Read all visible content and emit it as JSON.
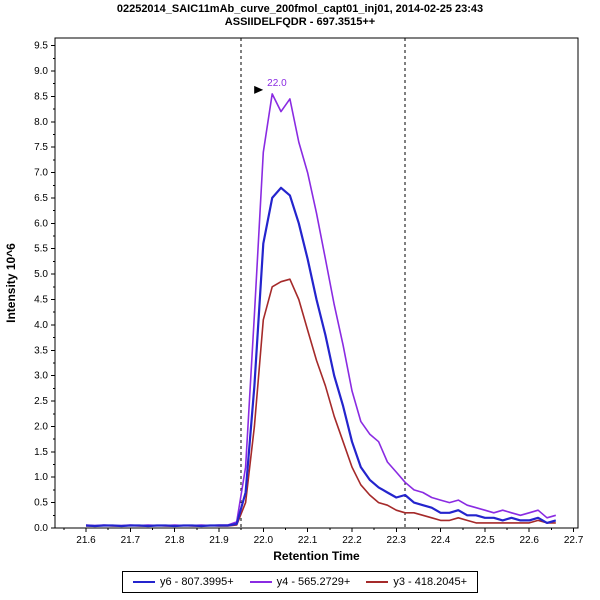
{
  "header": {
    "title_line1": "02252014_SAIC11mAb_curve_200fmol_capt01_inj01, 2014-02-25 23:43",
    "title_line2": "ASSIIDELFQDR - 697.3515++"
  },
  "chart_data": {
    "type": "line",
    "title": "ASSIIDELFQDR - 697.3515++",
    "xlabel": "Retention Time",
    "ylabel": "Intensity 10^6",
    "xlim": [
      21.53,
      22.71
    ],
    "ylim": [
      0,
      9.65
    ],
    "x_ticks": [
      21.6,
      21.7,
      21.8,
      21.9,
      22.0,
      22.1,
      22.2,
      22.3,
      22.4,
      22.5,
      22.6,
      22.7
    ],
    "y_ticks": [
      0.0,
      0.5,
      1.0,
      1.5,
      2.0,
      2.5,
      3.0,
      3.5,
      4.0,
      4.5,
      5.0,
      5.5,
      6.0,
      6.5,
      7.0,
      7.5,
      8.0,
      8.5,
      9.0,
      9.5
    ],
    "grid": false,
    "legend_position": "bottom",
    "peak_boundaries": [
      21.95,
      22.32
    ],
    "peak_annotation": {
      "text": "22.0",
      "x": 22.02,
      "y": 8.55,
      "color": "#8A2BE2"
    },
    "x": [
      21.6,
      21.62,
      21.64,
      21.66,
      21.68,
      21.7,
      21.72,
      21.74,
      21.76,
      21.78,
      21.8,
      21.82,
      21.84,
      21.86,
      21.88,
      21.9,
      21.92,
      21.94,
      21.96,
      21.98,
      22.0,
      22.02,
      22.04,
      22.06,
      22.08,
      22.1,
      22.12,
      22.14,
      22.16,
      22.18,
      22.2,
      22.22,
      22.24,
      22.26,
      22.28,
      22.3,
      22.32,
      22.34,
      22.36,
      22.38,
      22.4,
      22.42,
      22.44,
      22.46,
      22.48,
      22.5,
      22.52,
      22.54,
      22.56,
      22.58,
      22.6,
      22.62,
      22.64,
      22.66
    ],
    "series": [
      {
        "name": "y6 - 807.3995+",
        "color": "#2424cd",
        "values": [
          0.05,
          0.04,
          0.05,
          0.05,
          0.04,
          0.05,
          0.05,
          0.04,
          0.05,
          0.05,
          0.04,
          0.05,
          0.05,
          0.04,
          0.05,
          0.05,
          0.05,
          0.08,
          0.7,
          2.8,
          5.6,
          6.5,
          6.7,
          6.55,
          6.0,
          5.3,
          4.5,
          3.8,
          3.0,
          2.4,
          1.7,
          1.2,
          0.95,
          0.8,
          0.7,
          0.6,
          0.65,
          0.5,
          0.45,
          0.4,
          0.3,
          0.3,
          0.35,
          0.25,
          0.25,
          0.2,
          0.2,
          0.15,
          0.2,
          0.15,
          0.15,
          0.2,
          0.1,
          0.15
        ]
      },
      {
        "name": "y4 - 565.2729+",
        "color": "#8A2BE2",
        "values": [
          0.06,
          0.05,
          0.06,
          0.05,
          0.05,
          0.06,
          0.05,
          0.06,
          0.05,
          0.05,
          0.06,
          0.05,
          0.05,
          0.06,
          0.05,
          0.06,
          0.06,
          0.12,
          1.2,
          4.2,
          7.4,
          8.55,
          8.2,
          8.45,
          7.6,
          7.0,
          6.2,
          5.3,
          4.4,
          3.6,
          2.7,
          2.1,
          1.85,
          1.7,
          1.3,
          1.1,
          0.9,
          0.75,
          0.7,
          0.6,
          0.55,
          0.5,
          0.55,
          0.45,
          0.4,
          0.35,
          0.3,
          0.35,
          0.3,
          0.25,
          0.3,
          0.35,
          0.2,
          0.25
        ]
      },
      {
        "name": "y3 - 418.2045+",
        "color": "#A52A2A",
        "values": [
          0.04,
          0.04,
          0.05,
          0.04,
          0.04,
          0.05,
          0.04,
          0.04,
          0.05,
          0.04,
          0.04,
          0.05,
          0.04,
          0.04,
          0.05,
          0.04,
          0.04,
          0.06,
          0.5,
          2.0,
          4.1,
          4.75,
          4.85,
          4.9,
          4.5,
          3.9,
          3.3,
          2.8,
          2.2,
          1.7,
          1.2,
          0.85,
          0.65,
          0.5,
          0.45,
          0.35,
          0.3,
          0.3,
          0.25,
          0.2,
          0.15,
          0.15,
          0.2,
          0.15,
          0.1,
          0.1,
          0.1,
          0.1,
          0.1,
          0.1,
          0.1,
          0.15,
          0.1,
          0.1
        ]
      }
    ]
  },
  "legend": {
    "items": [
      {
        "label": "y6 - 807.3995+",
        "color": "#2424cd"
      },
      {
        "label": "y4 - 565.2729+",
        "color": "#8A2BE2"
      },
      {
        "label": "y3 - 418.2045+",
        "color": "#A52A2A"
      }
    ]
  }
}
